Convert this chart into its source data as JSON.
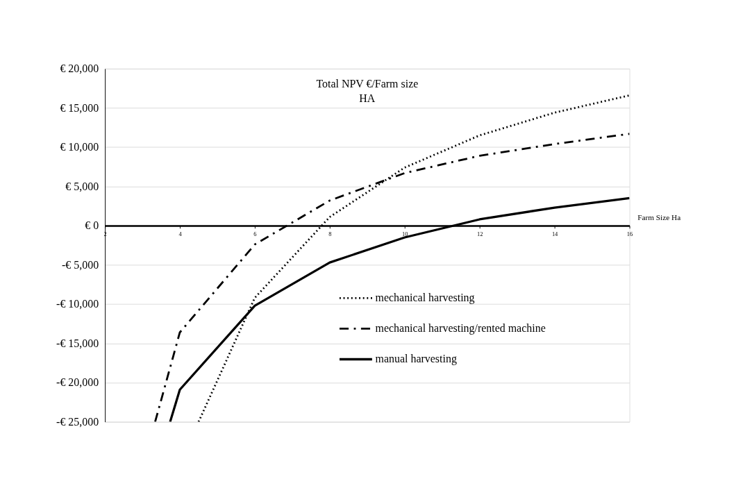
{
  "chart_data": {
    "type": "line",
    "title": "Total NPV €/Farm size\nHA",
    "xlabel": "Farm Size Ha",
    "xlim": [
      2,
      16
    ],
    "xticks": [
      2,
      4,
      6,
      8,
      10,
      12,
      14,
      16
    ],
    "ylim": [
      -25000,
      20000
    ],
    "yticks": [
      {
        "value": -25000,
        "label": "-€ 25,000"
      },
      {
        "value": -20000,
        "label": "-€ 20,000"
      },
      {
        "value": -15000,
        "label": "-€ 15,000"
      },
      {
        "value": -10000,
        "label": "-€ 10,000"
      },
      {
        "value": -5000,
        "label": "-€ 5,000"
      },
      {
        "value": 0,
        "label": "€ 0"
      },
      {
        "value": 5000,
        "label": "€ 5,000"
      },
      {
        "value": 10000,
        "label": "€ 10,000"
      },
      {
        "value": 15000,
        "label": "€ 15,000"
      },
      {
        "value": 20000,
        "label": "€ 20,000"
      }
    ],
    "grid": "y",
    "legend": "bottom right",
    "marker": "none",
    "series": [
      {
        "name": "mechanical harvesting",
        "color": "#000000",
        "line_style": "dotted",
        "x": [
          4.5,
          6,
          8,
          10,
          12,
          14,
          16
        ],
        "values": [
          -25000,
          -9200,
          1100,
          7400,
          11500,
          14400,
          16600
        ]
      },
      {
        "name": "mechanical harvesting/rented machine",
        "color": "#000000",
        "line_style": "dashed",
        "x": [
          3.34,
          4,
          6,
          8,
          10,
          12,
          14,
          16
        ],
        "values": [
          -25000,
          -13600,
          -2400,
          3200,
          6700,
          8900,
          10400,
          11700
        ]
      },
      {
        "name": "manual harvesting",
        "color": "#000000",
        "line_style": "solid",
        "x": [
          3.74,
          4,
          6,
          8,
          10,
          12,
          14,
          16
        ],
        "values": [
          -25000,
          -20900,
          -10200,
          -4700,
          -1500,
          800,
          2300,
          3500
        ]
      }
    ]
  }
}
